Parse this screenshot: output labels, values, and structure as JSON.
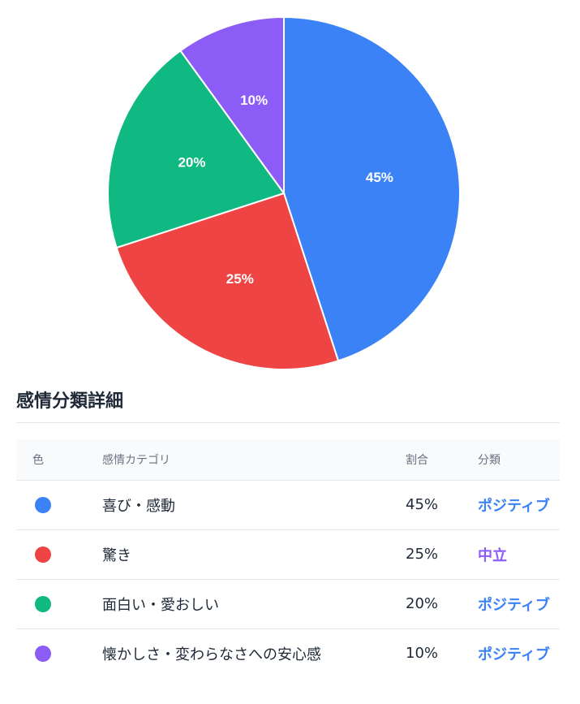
{
  "chart_data": {
    "type": "pie",
    "categories": [
      "喜び・感動",
      "驚き",
      "面白い・愛おしい",
      "懐かしさ・変わらなさへの安心感"
    ],
    "values": [
      45,
      25,
      20,
      10
    ],
    "labels": [
      "45%",
      "25%",
      "20%",
      "10%"
    ],
    "colors": [
      "#3b82f6",
      "#ef4444",
      "#10b981",
      "#8b5cf6"
    ],
    "title": "",
    "legend": "none"
  },
  "details": {
    "title": "感情分類詳細",
    "headers": {
      "color": "色",
      "category": "感情カテゴリ",
      "ratio": "割合",
      "classification": "分類"
    },
    "rows": [
      {
        "color": "#3b82f6",
        "category": "喜び・感動",
        "ratio": "45%",
        "classification": "ポジティブ",
        "class_color": "#3b82f6"
      },
      {
        "color": "#ef4444",
        "category": "驚き",
        "ratio": "25%",
        "classification": "中立",
        "class_color": "#8b5cf6"
      },
      {
        "color": "#10b981",
        "category": "面白い・愛おしい",
        "ratio": "20%",
        "classification": "ポジティブ",
        "class_color": "#3b82f6"
      },
      {
        "color": "#8b5cf6",
        "category": "懐かしさ・変わらなさへの安心感",
        "ratio": "10%",
        "classification": "ポジティブ",
        "class_color": "#3b82f6"
      }
    ]
  }
}
